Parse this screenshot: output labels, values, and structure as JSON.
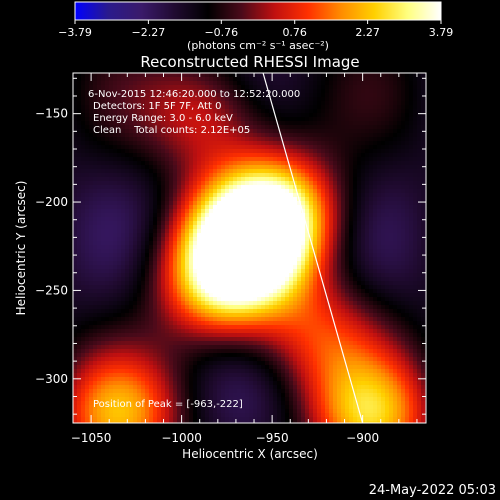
{
  "chart_data": {
    "type": "heatmap",
    "title": "Reconstructed RHESSI Image",
    "xlabel": "Heliocentric X (arcsec)",
    "ylabel": "Heliocentric Y (arcsec)",
    "xlim": [
      -1060,
      -865
    ],
    "ylim": [
      -325,
      -127
    ],
    "xticks": [
      -1050,
      -1000,
      -950,
      -900
    ],
    "xtick_labels": [
      "−1050",
      "−1000",
      "−950",
      "−900"
    ],
    "yticks": [
      -150,
      -200,
      -250,
      -300
    ],
    "ytick_labels": [
      "−150",
      "−200",
      "−250",
      "−300"
    ],
    "colorbar": {
      "min": -3.79,
      "max": 3.79,
      "ticks": [
        -3.79,
        -2.27,
        -0.76,
        0.76,
        2.27,
        3.79
      ],
      "tick_labels": [
        "−3.79",
        "−2.27",
        "−0.76",
        "0.76",
        "2.27",
        "3.79"
      ],
      "units": "(photons cm⁻² s⁻¹ asec⁻²)",
      "colors": [
        "#0000ff",
        "#2a1a8c",
        "#3a1a6a",
        "#200a30",
        "#000000",
        "#4a0a1a",
        "#c01010",
        "#ff3000",
        "#ff8c00",
        "#ffd000",
        "#ffff80",
        "#ffffff"
      ]
    },
    "annotations": [
      "6-Nov-2015 12:46:20.000 to 12:52:20.000",
      "Detectors: 1F 5F 7F, Att 0",
      "Energy Range: 3.0 - 6.0 keV",
      "Clean    Total counts: 2.12E+05"
    ],
    "peak_label": "Position of Peak = [-963,-222]",
    "peak": [
      -963,
      -222
    ],
    "sources": [
      {
        "x": -963,
        "y": -222,
        "value": 3.6
      },
      {
        "x": -945,
        "y": -205,
        "value": 2.0
      },
      {
        "x": -980,
        "y": -245,
        "value": 2.0
      },
      {
        "x": -1035,
        "y": -322,
        "value": 1.6
      },
      {
        "x": -895,
        "y": -322,
        "value": 1.9
      },
      {
        "x": -985,
        "y": -150,
        "value": 0.7
      },
      {
        "x": -925,
        "y": -275,
        "value": 0.6
      }
    ],
    "limb_line": [
      [
        -955,
        -127
      ],
      [
        -900,
        -325
      ]
    ],
    "grid": false
  },
  "footer": {
    "date": "24-May-2022 05:03"
  }
}
